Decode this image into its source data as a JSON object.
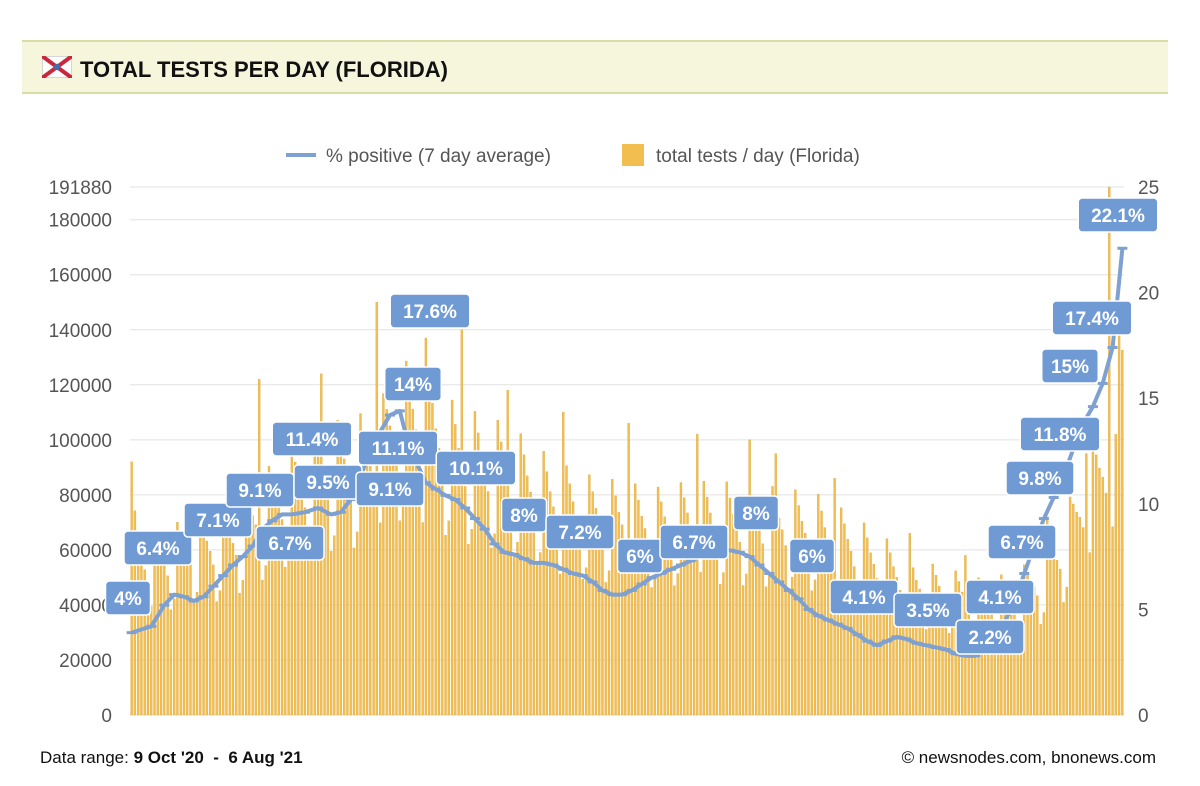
{
  "header": {
    "title": "TOTAL TESTS PER DAY (FLORIDA)",
    "flag_icon": "florida-flag-icon"
  },
  "legend": {
    "line_label": "% positive (7 day average)",
    "bar_label": "total tests / day (Florida)"
  },
  "colors": {
    "bar": "#f2be4f",
    "bar_edge": "#d9a53c",
    "line": "#7ea1d1",
    "label_bg": "#6f9ad3",
    "grid": "#e2e2e2",
    "header_bg": "#f6f6dc"
  },
  "footer": {
    "range_label": "Data range:",
    "range_value": "9 Oct '20  -  6 Aug '21",
    "credit": "© newsnodes.com, bnonews.com"
  },
  "chart_data": {
    "type": "bar",
    "x_start": "9 Oct '20",
    "x_end": "6 Aug '21",
    "ylim_left": [
      0,
      191880
    ],
    "yticks_left": [
      0,
      20000,
      40000,
      60000,
      80000,
      100000,
      120000,
      140000,
      160000,
      180000,
      191880
    ],
    "ylim_right": [
      0,
      25
    ],
    "yticks_right": [
      0,
      5,
      10,
      15,
      20,
      25
    ],
    "bar_profile": [
      [
        0,
        70000
      ],
      [
        6,
        55000
      ],
      [
        12,
        58000
      ],
      [
        18,
        62000
      ],
      [
        25,
        62000
      ],
      [
        30,
        64000
      ],
      [
        38,
        72000
      ],
      [
        45,
        80000
      ],
      [
        52,
        85000
      ],
      [
        60,
        90000
      ],
      [
        68,
        92000
      ],
      [
        75,
        95000
      ],
      [
        80,
        105000
      ],
      [
        85,
        110000
      ],
      [
        90,
        105000
      ],
      [
        95,
        100000
      ],
      [
        100,
        95000
      ],
      [
        110,
        92000
      ],
      [
        120,
        86000
      ],
      [
        130,
        78000
      ],
      [
        140,
        74000
      ],
      [
        150,
        72000
      ],
      [
        160,
        70000
      ],
      [
        170,
        72000
      ],
      [
        180,
        72000
      ],
      [
        190,
        71000
      ],
      [
        200,
        70000
      ],
      [
        210,
        68000
      ],
      [
        220,
        62000
      ],
      [
        230,
        55000
      ],
      [
        240,
        48000
      ],
      [
        250,
        45000
      ],
      [
        260,
        42000
      ],
      [
        270,
        44000
      ],
      [
        278,
        50000
      ],
      [
        285,
        62000
      ],
      [
        292,
        80000
      ],
      [
        297,
        90000
      ],
      [
        300,
        95000
      ],
      [
        302,
        130000
      ]
    ],
    "bar_peaks": [
      [
        0,
        92000
      ],
      [
        39,
        122000
      ],
      [
        58,
        124000
      ],
      [
        75,
        150000
      ],
      [
        90,
        137000
      ],
      [
        101,
        140000
      ],
      [
        115,
        118000
      ],
      [
        132,
        110000
      ],
      [
        152,
        106000
      ],
      [
        173,
        102000
      ],
      [
        189,
        100000
      ],
      [
        197,
        95000
      ],
      [
        215,
        86000
      ],
      [
        238,
        66000
      ],
      [
        255,
        58000
      ],
      [
        280,
        72000
      ],
      [
        292,
        95000
      ],
      [
        299,
        191880
      ],
      [
        301,
        102000
      ]
    ],
    "series": [
      {
        "name": "% positive (7 day average)",
        "axis": "right",
        "points": [
          [
            0,
            3.9
          ],
          [
            6,
            4.2
          ],
          [
            10,
            5.2
          ],
          [
            13,
            5.7
          ],
          [
            16,
            5.6
          ],
          [
            19,
            5.4
          ],
          [
            22,
            5.6
          ],
          [
            25,
            6.1
          ],
          [
            28,
            6.6
          ],
          [
            31,
            7.1
          ],
          [
            34,
            7.5
          ],
          [
            37,
            8.0
          ],
          [
            40,
            8.8
          ],
          [
            43,
            9.2
          ],
          [
            46,
            9.5
          ],
          [
            49,
            9.5
          ],
          [
            53,
            9.6
          ],
          [
            57,
            9.8
          ],
          [
            61,
            9.5
          ],
          [
            64,
            9.6
          ],
          [
            67,
            10.2
          ],
          [
            70,
            11.3
          ],
          [
            73,
            12.5
          ],
          [
            76,
            13.4
          ],
          [
            79,
            14.2
          ],
          [
            82,
            14.4
          ],
          [
            84,
            13.2
          ],
          [
            87,
            12.0
          ],
          [
            90,
            11.0
          ],
          [
            93,
            10.7
          ],
          [
            96,
            10.4
          ],
          [
            99,
            10.2
          ],
          [
            102,
            9.8
          ],
          [
            105,
            9.3
          ],
          [
            108,
            8.8
          ],
          [
            111,
            8.1
          ],
          [
            114,
            7.7
          ],
          [
            117,
            7.6
          ],
          [
            120,
            7.4
          ],
          [
            123,
            7.2
          ],
          [
            126,
            7.2
          ],
          [
            129,
            7.1
          ],
          [
            132,
            6.9
          ],
          [
            135,
            6.7
          ],
          [
            138,
            6.6
          ],
          [
            141,
            6.3
          ],
          [
            144,
            5.9
          ],
          [
            147,
            5.7
          ],
          [
            150,
            5.7
          ],
          [
            153,
            5.9
          ],
          [
            156,
            6.2
          ],
          [
            159,
            6.5
          ],
          [
            162,
            6.7
          ],
          [
            165,
            6.9
          ],
          [
            168,
            7.1
          ],
          [
            171,
            7.3
          ],
          [
            174,
            7.5
          ],
          [
            177,
            7.7
          ],
          [
            180,
            7.8
          ],
          [
            183,
            7.8
          ],
          [
            186,
            7.7
          ],
          [
            189,
            7.5
          ],
          [
            192,
            7.1
          ],
          [
            195,
            6.7
          ],
          [
            198,
            6.3
          ],
          [
            201,
            5.9
          ],
          [
            204,
            5.5
          ],
          [
            207,
            5.0
          ],
          [
            210,
            4.7
          ],
          [
            213,
            4.5
          ],
          [
            216,
            4.3
          ],
          [
            219,
            4.1
          ],
          [
            222,
            3.8
          ],
          [
            225,
            3.5
          ],
          [
            228,
            3.3
          ],
          [
            231,
            3.5
          ],
          [
            234,
            3.7
          ],
          [
            237,
            3.6
          ],
          [
            240,
            3.4
          ],
          [
            243,
            3.3
          ],
          [
            246,
            3.2
          ],
          [
            249,
            3.1
          ],
          [
            252,
            2.9
          ],
          [
            255,
            2.8
          ],
          [
            258,
            2.8
          ],
          [
            261,
            3.1
          ],
          [
            264,
            3.6
          ],
          [
            267,
            4.4
          ],
          [
            270,
            5.4
          ],
          [
            273,
            6.7
          ],
          [
            276,
            8.0
          ],
          [
            279,
            9.3
          ],
          [
            282,
            10.3
          ],
          [
            285,
            11.3
          ],
          [
            288,
            12.6
          ],
          [
            291,
            13.8
          ],
          [
            294,
            14.6
          ],
          [
            297,
            15.7
          ],
          [
            300,
            17.4
          ],
          [
            303,
            22.1
          ]
        ]
      }
    ],
    "annotations": [
      {
        "text": "4%",
        "x": 0,
        "v": 3.9
      },
      {
        "text": "6.4%",
        "x": 10,
        "v": 5.2
      },
      {
        "text": "7.1%",
        "x": 25,
        "v": 6.1
      },
      {
        "text": "9.1%",
        "x": 40,
        "v": 8.8
      },
      {
        "text": "6.7%",
        "x": 49,
        "v": 9.5
      },
      {
        "text": "11.4%",
        "x": 59,
        "v": 9.7
      },
      {
        "text": "9.5%",
        "x": 62,
        "v": 9.5
      },
      {
        "text": "11.1%",
        "x": 73,
        "v": 12.5
      },
      {
        "text": "9.1%",
        "x": 70,
        "v": 11.3
      },
      {
        "text": "14%",
        "x": 79,
        "v": 14.2
      },
      {
        "text": "17.6%",
        "x": 82,
        "v": 14.4
      },
      {
        "text": "10.1%",
        "x": 99,
        "v": 10.2
      },
      {
        "text": "8%",
        "x": 108,
        "v": 8.8
      },
      {
        "text": "7.2%",
        "x": 123,
        "v": 7.2
      },
      {
        "text": "6%",
        "x": 141,
        "v": 6.3
      },
      {
        "text": "6.7%",
        "x": 165,
        "v": 6.9
      },
      {
        "text": "8%",
        "x": 180,
        "v": 7.8
      },
      {
        "text": "6%",
        "x": 195,
        "v": 6.7
      },
      {
        "text": "4.1%",
        "x": 213,
        "v": 4.5
      },
      {
        "text": "3.5%",
        "x": 225,
        "v": 3.5
      },
      {
        "text": "2.2%",
        "x": 252,
        "v": 2.9
      },
      {
        "text": "4.1%",
        "x": 258,
        "v": 2.8
      },
      {
        "text": "6.7%",
        "x": 273,
        "v": 6.7
      },
      {
        "text": "9.8%",
        "x": 279,
        "v": 9.3
      },
      {
        "text": "11.8%",
        "x": 285,
        "v": 11.3
      },
      {
        "text": "15%",
        "x": 291,
        "v": 13.8
      },
      {
        "text": "17.4%",
        "x": 300,
        "v": 17.4
      },
      {
        "text": "22.1%",
        "x": 303,
        "v": 22.1
      }
    ]
  }
}
